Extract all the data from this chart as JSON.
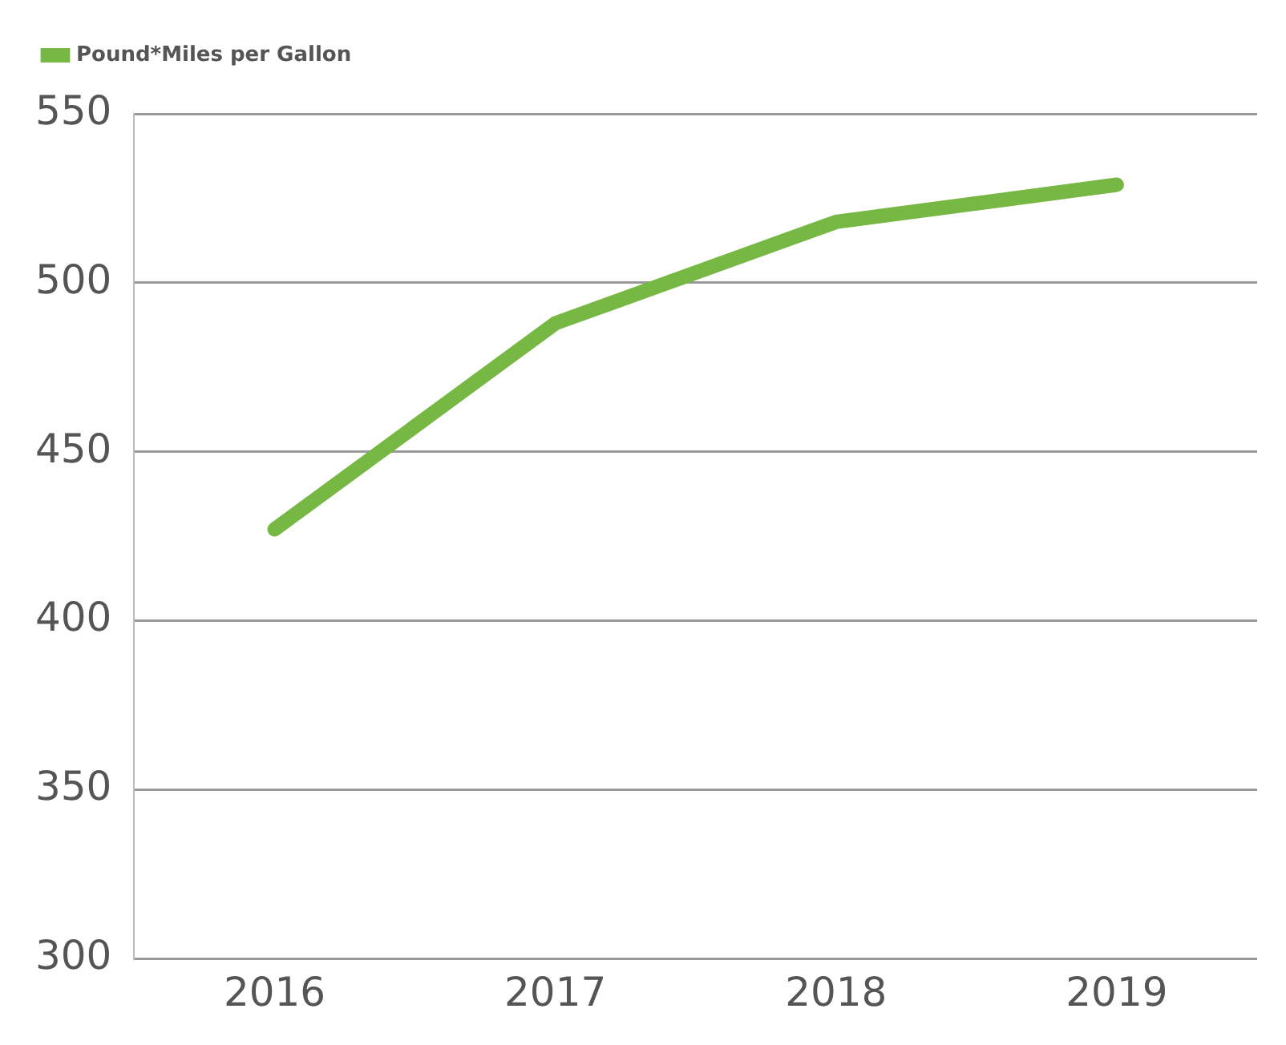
{
  "chart_data": {
    "type": "line",
    "categories": [
      "2016",
      "2017",
      "2018",
      "2019"
    ],
    "series": [
      {
        "name": "Pound*Miles per Gallon",
        "color": "#76b843",
        "values": [
          427,
          488,
          518,
          529
        ]
      }
    ],
    "ylim": [
      300,
      550
    ],
    "yticks": [
      300,
      350,
      400,
      450,
      500,
      550
    ],
    "grid": "y",
    "legend": "top left",
    "marker": "none",
    "line_style": "solid"
  }
}
